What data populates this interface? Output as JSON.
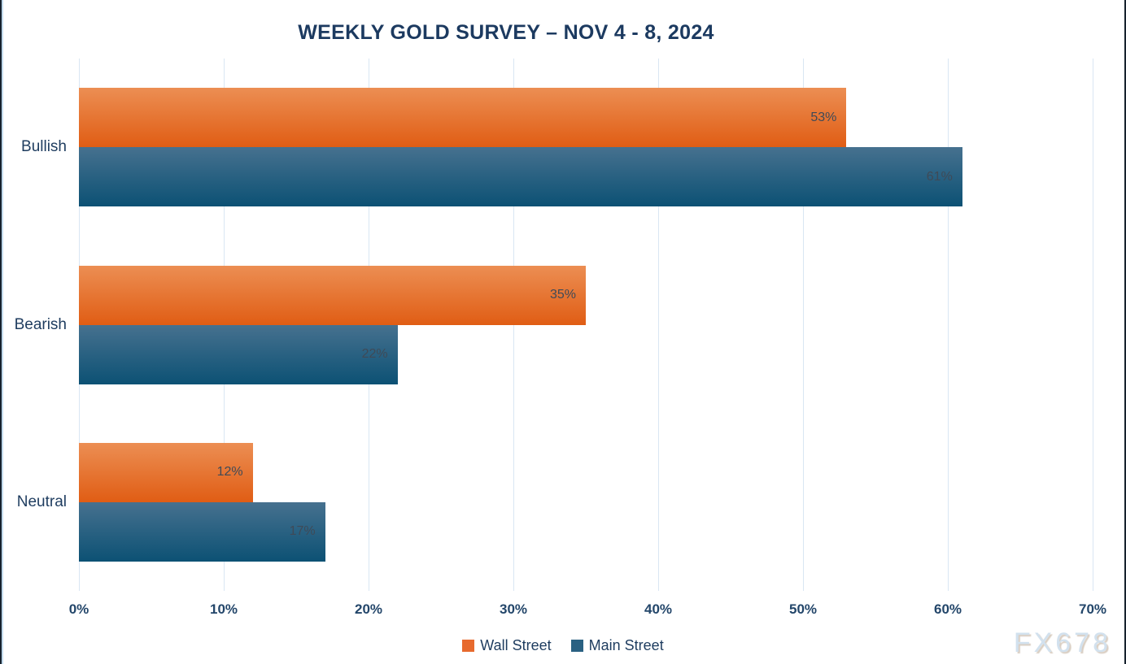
{
  "title": "WEEKLY GOLD SURVEY – NOV 4 - 8, 2024",
  "watermark": "FX678",
  "colors": {
    "title_text": "#1c3a60",
    "axis_text": "#1e3c5f",
    "tick_text": "#23466a",
    "data_label_text": "#3f4a57",
    "gridline": "#d9e6f3",
    "frame_border": "#16222e",
    "watermark_text": "#d2e1ee",
    "wall_street_orange": "#e76a2e",
    "main_street_blue": "#2a6182"
  },
  "chart_data": {
    "type": "bar",
    "orientation": "horizontal",
    "title": "WEEKLY GOLD SURVEY – NOV 4 - 8, 2024",
    "categories": [
      "Bullish",
      "Bearish",
      "Neutral"
    ],
    "series": [
      {
        "name": "Wall Street",
        "color": "#e76a2e",
        "gradient": [
          "#ec8e53",
          "#e05d14"
        ],
        "values": [
          53,
          35,
          12
        ]
      },
      {
        "name": "Main Street",
        "color": "#2a6182",
        "gradient": [
          "#46718f",
          "#0c5174"
        ],
        "values": [
          61,
          22,
          17
        ]
      }
    ],
    "value_suffix": "%",
    "x_ticks": [
      "0%",
      "10%",
      "20%",
      "30%",
      "40%",
      "50%",
      "60%",
      "70%"
    ],
    "xlim": [
      0,
      70
    ],
    "grid": true,
    "legend_position": "bottom"
  }
}
